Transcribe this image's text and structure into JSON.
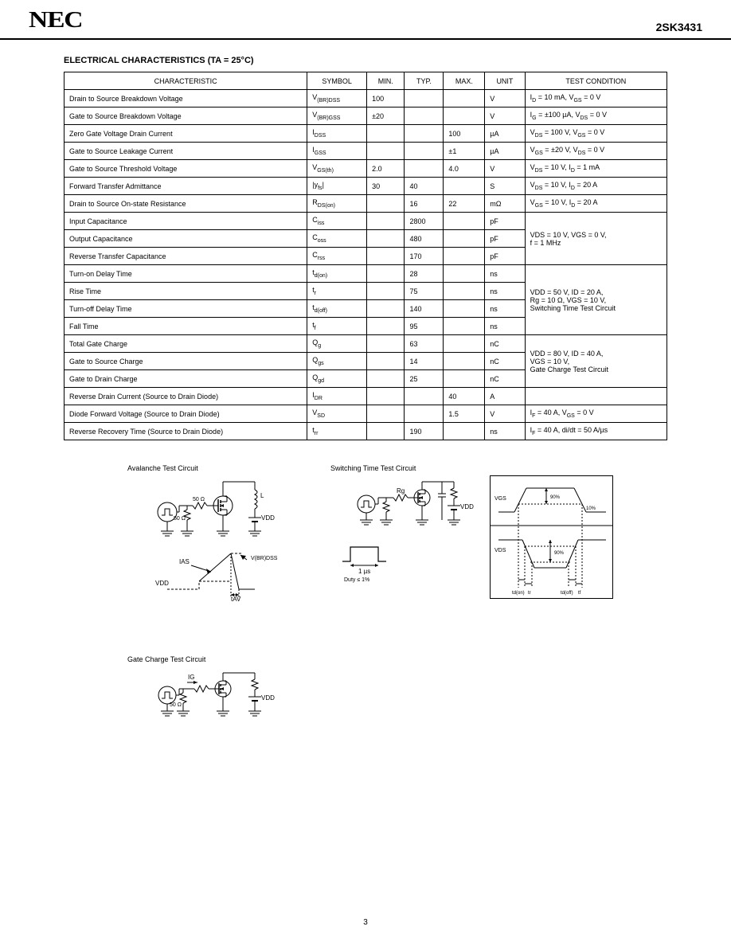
{
  "header": {
    "logo": "NEC",
    "part": "2SK3431"
  },
  "section_title": "ELECTRICAL CHARACTERISTICS (TA = 25°C)",
  "table": {
    "headers": [
      "CHARACTERISTIC",
      "SYMBOL",
      "MIN.",
      "TYP.",
      "MAX.",
      "UNIT",
      "TEST CONDITION"
    ],
    "rows": [
      [
        "Drain to Source Breakdown Voltage",
        "V(BR)DSS",
        "100",
        "",
        "",
        "V",
        "ID = 10 mA, VGS = 0 V"
      ],
      [
        "Gate to Source Breakdown Voltage",
        "V(BR)GSS",
        "±20",
        "",
        "",
        "V",
        "IG = ±100 µA, VDS = 0 V"
      ],
      [
        "Zero Gate Voltage Drain Current",
        "IDSS",
        "",
        "",
        "100",
        "µA",
        "VDS = 100 V, VGS = 0 V"
      ],
      [
        "Gate to Source Leakage Current",
        "IGSS",
        "",
        "",
        "±1",
        "µA",
        "VGS = ±20 V, VDS = 0 V"
      ],
      [
        "Gate to Source Threshold Voltage",
        "VGS(th)",
        "2.0",
        "",
        "4.0",
        "V",
        "VDS = 10 V, ID = 1 mA"
      ],
      [
        "Forward Transfer Admittance",
        "|yfs|",
        "30",
        "40",
        "",
        "S",
        "VDS = 10 V, ID = 20 A"
      ],
      [
        "Drain to Source On-state Resistance",
        "RDS(on)",
        "",
        "16",
        "22",
        "mΩ",
        "VGS = 10 V, ID = 20 A"
      ],
      [
        "Input Capacitance",
        "Ciss",
        "",
        "2800",
        "",
        "pF",
        "_merge3_cap"
      ],
      [
        "Output Capacitance",
        "Coss",
        "",
        "480",
        "",
        "pF",
        "_merge3_cap"
      ],
      [
        "Reverse Transfer Capacitance",
        "Crss",
        "",
        "170",
        "",
        "pF",
        "_merge3_cap"
      ],
      [
        "Turn-on Delay Time",
        "td(on)",
        "",
        "28",
        "",
        "ns",
        "_merge4_sw"
      ],
      [
        "Rise Time",
        "tr",
        "",
        "75",
        "",
        "ns",
        "_merge4_sw"
      ],
      [
        "Turn-off Delay Time",
        "td(off)",
        "",
        "140",
        "",
        "ns",
        "_merge4_sw"
      ],
      [
        "Fall Time",
        "tf",
        "",
        "95",
        "",
        "ns",
        "_merge4_sw"
      ],
      [
        "Total Gate Charge",
        "Qg",
        "",
        "63",
        "",
        "nC",
        "_merge3_q"
      ],
      [
        "Gate to Source Charge",
        "Qgs",
        "",
        "14",
        "",
        "nC",
        "_merge3_q"
      ],
      [
        "Gate to Drain Charge",
        "Qgd",
        "",
        "25",
        "",
        "nC",
        "_merge3_q"
      ],
      [
        "Reverse Drain Current (Source to Drain Diode)",
        "IDR",
        "",
        "",
        "40",
        "A",
        ""
      ],
      [
        "Diode Forward Voltage (Source to Drain Diode)",
        "VSD",
        "",
        "",
        "1.5",
        "V",
        "IF = 40 A, VGS = 0 V"
      ],
      [
        "Reverse Recovery Time (Source to Drain Diode)",
        "trr",
        "",
        "190",
        "",
        "ns",
        "IF = 40 A, di/dt = 50 A/µs"
      ]
    ],
    "merged_conditions": {
      "cap": "VDS = 10 V, VGS = 0 V,\nf = 1 MHz",
      "sw": "VDD = 50 V, ID = 20 A,\nRg = 10 Ω, VGS = 10 V,\nSwitching Time Test Circuit",
      "q": "VDD = 80 V, ID = 40 A,\nVGS = 10 V,\nGate Charge Test Circuit"
    }
  },
  "circuits": {
    "c1_title": "Avalanche Test Circuit",
    "c2_title": "Switching Time Test Circuit",
    "c3_title": "Gate Charge Test Circuit",
    "c1_labels": {
      "L": "L",
      "Rg": "50 Ω",
      "VDD": "VDD",
      "RL": "50 Ω",
      "tav": "tAV",
      "IAS": "IAS",
      "VDSS": "V(BR)DSS",
      "VDD_lbl": "VDD"
    },
    "c2_labels": {
      "Rg": "Rg",
      "VDD": "VDD",
      "pw": "1 µs",
      "duty": "Duty ≤ 1%",
      "vgs10": "10%",
      "vgs90": "90%",
      "vgs": "VGS",
      "vds": "VDS",
      "td_on": "td(on)",
      "tr": "tr",
      "td_off": "td(off)",
      "tf": "tf"
    },
    "c3_labels": {
      "ig": "IG",
      "Rg": "50 Ω",
      "VDD": "VDD"
    }
  },
  "page": "3",
  "colors": {
    "bg": "#ffffff",
    "fg": "#000000",
    "border": "#000000"
  }
}
